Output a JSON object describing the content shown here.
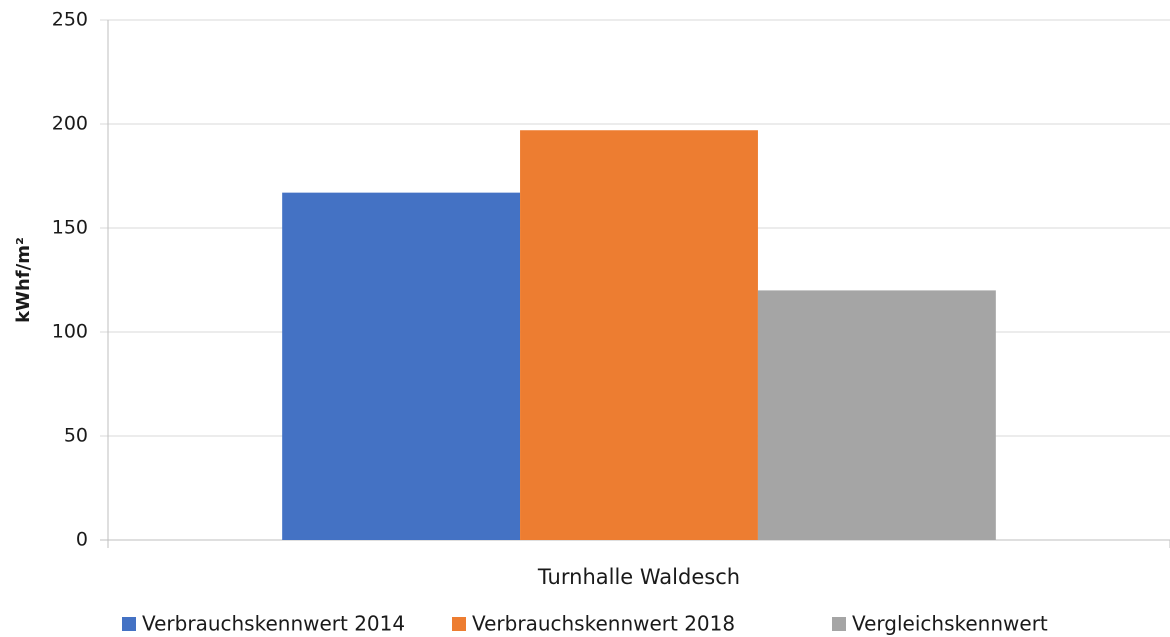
{
  "chart_data": {
    "type": "bar",
    "y_label": "kWhf/m²",
    "categories": [
      "Turnhalle Waldesch"
    ],
    "series": [
      {
        "name": "Verbrauchskennwert 2014",
        "color": "#4472c4",
        "values": [
          167
        ]
      },
      {
        "name": "Verbrauchskennwert 2018",
        "color": "#ed7d31",
        "values": [
          197
        ]
      },
      {
        "name": "Vergleichskennwert",
        "color": "#a5a5a5",
        "values": [
          120
        ]
      }
    ],
    "ylim": [
      0,
      250
    ],
    "yticks": [
      0,
      50,
      100,
      150,
      200,
      250
    ],
    "grid": true,
    "legend": "bottom"
  }
}
